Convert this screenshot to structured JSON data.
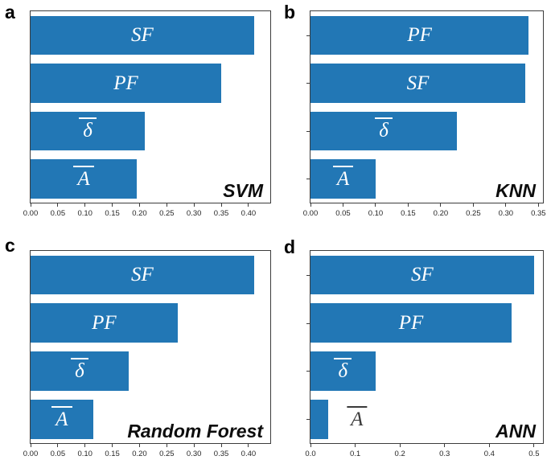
{
  "figure_colors": {
    "bar": "#2277b5",
    "bar_label": "#ffffff",
    "outside_label": "#3a3a3a",
    "axis": "#3c3c3c",
    "tick_label": "#262626",
    "background": "#ffffff"
  },
  "chart_data": [
    {
      "id": "a",
      "type": "bar",
      "orientation": "horizontal",
      "panel_letter": "a",
      "model_label": "SVM",
      "bars": [
        {
          "label": "SF",
          "overline": false,
          "value": 0.41,
          "label_inside": true
        },
        {
          "label": "PF",
          "overline": false,
          "value": 0.35,
          "label_inside": true
        },
        {
          "label": "δ",
          "overline": true,
          "value": 0.21,
          "label_inside": true
        },
        {
          "label": "A",
          "overline": true,
          "value": 0.195,
          "label_inside": true
        }
      ],
      "xlim": [
        0,
        0.44
      ],
      "xtick_values": [
        0,
        0.05,
        0.1,
        0.15,
        0.2,
        0.25,
        0.3,
        0.35,
        0.4
      ],
      "xtick_labels": [
        "0.00",
        "0.05",
        "0.10",
        "0.15",
        "0.20",
        "0.25",
        "0.30",
        "0.35",
        "0.40"
      ],
      "y_axis_ticks": false,
      "grid": false,
      "legend": false
    },
    {
      "id": "b",
      "type": "bar",
      "orientation": "horizontal",
      "panel_letter": "b",
      "model_label": "KNN",
      "bars": [
        {
          "label": "PF",
          "overline": false,
          "value": 0.335,
          "label_inside": true
        },
        {
          "label": "SF",
          "overline": false,
          "value": 0.33,
          "label_inside": true
        },
        {
          "label": "δ",
          "overline": true,
          "value": 0.225,
          "label_inside": true
        },
        {
          "label": "A",
          "overline": true,
          "value": 0.1,
          "label_inside": true
        }
      ],
      "xlim": [
        0,
        0.357
      ],
      "xtick_values": [
        0,
        0.05,
        0.1,
        0.15,
        0.2,
        0.25,
        0.3,
        0.35
      ],
      "xtick_labels": [
        "0.00",
        "0.05",
        "0.10",
        "0.15",
        "0.20",
        "0.25",
        "0.30",
        "0.35"
      ],
      "y_axis_ticks": true,
      "grid": false,
      "legend": false
    },
    {
      "id": "c",
      "type": "bar",
      "orientation": "horizontal",
      "panel_letter": "c",
      "model_label": "Random Forest",
      "bars": [
        {
          "label": "SF",
          "overline": false,
          "value": 0.41,
          "label_inside": true
        },
        {
          "label": "PF",
          "overline": false,
          "value": 0.27,
          "label_inside": true
        },
        {
          "label": "δ",
          "overline": true,
          "value": 0.18,
          "label_inside": true
        },
        {
          "label": "A",
          "overline": true,
          "value": 0.115,
          "label_inside": true
        }
      ],
      "xlim": [
        0,
        0.44
      ],
      "xtick_values": [
        0,
        0.05,
        0.1,
        0.15,
        0.2,
        0.25,
        0.3,
        0.35,
        0.4
      ],
      "xtick_labels": [
        "0.00",
        "0.05",
        "0.10",
        "0.15",
        "0.20",
        "0.25",
        "0.30",
        "0.35",
        "0.40"
      ],
      "y_axis_ticks": false,
      "grid": false,
      "legend": false
    },
    {
      "id": "d",
      "type": "bar",
      "orientation": "horizontal",
      "panel_letter": "d",
      "model_label": "ANN",
      "bars": [
        {
          "label": "SF",
          "overline": false,
          "value": 0.5,
          "label_inside": true
        },
        {
          "label": "PF",
          "overline": false,
          "value": 0.45,
          "label_inside": true
        },
        {
          "label": "δ",
          "overline": true,
          "value": 0.145,
          "label_inside": true
        },
        {
          "label": "A",
          "overline": true,
          "value": 0.04,
          "label_inside": false
        }
      ],
      "xlim": [
        0,
        0.52
      ],
      "xtick_values": [
        0,
        0.1,
        0.2,
        0.3,
        0.4,
        0.5
      ],
      "xtick_labels": [
        "0.0",
        "0.1",
        "0.2",
        "0.3",
        "0.4",
        "0.5"
      ],
      "y_axis_ticks": true,
      "grid": false,
      "legend": false
    }
  ]
}
